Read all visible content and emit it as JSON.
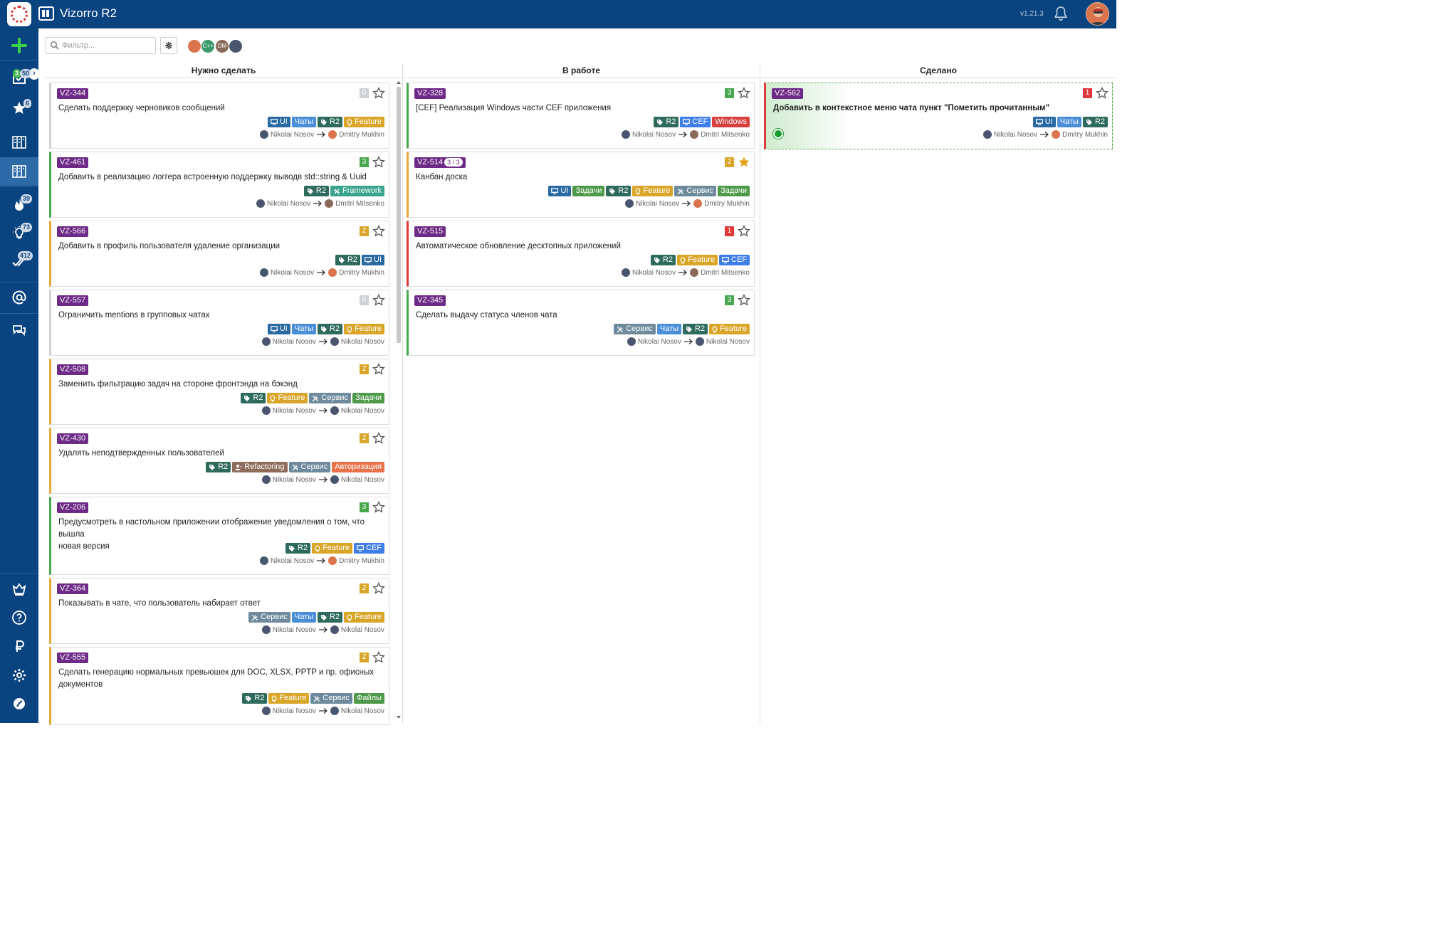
{
  "app": {
    "title": "Vizorro R2",
    "version": "v1.21.3"
  },
  "sidebar": {
    "expand_glyph": "›",
    "items": [
      {
        "name": "add",
        "icon": "plus-icon"
      },
      {
        "name": "inbox",
        "icon": "inbox-icon",
        "badge_a": "3",
        "badge_b": "50"
      },
      {
        "name": "favorites",
        "icon": "star-icon",
        "badge": "6"
      },
      {
        "name": "boards",
        "icon": "board-icon"
      },
      {
        "name": "boards-active",
        "icon": "board-icon"
      },
      {
        "name": "hot",
        "icon": "fire-icon",
        "badge": "39"
      },
      {
        "name": "ideas",
        "icon": "lightbulb-icon",
        "badge": "73"
      },
      {
        "name": "done",
        "icon": "check-icon",
        "badge": "412"
      },
      {
        "name": "mentions",
        "icon": "at-icon"
      },
      {
        "name": "chats",
        "icon": "chat-icon"
      },
      {
        "name": "premium",
        "icon": "crown-icon"
      },
      {
        "name": "help",
        "icon": "question-icon"
      },
      {
        "name": "billing",
        "icon": "ruble-icon"
      },
      {
        "name": "settings",
        "icon": "gear-icon"
      },
      {
        "name": "logo-bottom",
        "icon": "leaf-icon"
      }
    ]
  },
  "toolbar": {
    "filter_placeholder": "Фильтр...",
    "avatars": [
      {
        "label": "",
        "color": "#d9744c"
      },
      {
        "label": "C++",
        "color": "#3c9a6d"
      },
      {
        "label": "DM",
        "color": "#8a6a5a"
      },
      {
        "label": "",
        "color": "#4a5570"
      }
    ]
  },
  "columns": [
    {
      "title": "Нужно сделать"
    },
    {
      "title": "В работе"
    },
    {
      "title": "Сделано"
    }
  ],
  "cards": [
    {
      "col": 0,
      "id": "VZ-344",
      "prio": "0",
      "prio_color": "#cfd2d5",
      "starred": false,
      "title": [
        "Сделать поддержку черновиков сообщений"
      ],
      "tags": [
        {
          "t": "UI",
          "c": "#2a6aa3",
          "ic": "monitor"
        },
        {
          "t": "Чаты",
          "c": "#4a8ed8",
          "ic": ""
        },
        {
          "t": "R2",
          "c": "#2f6b5d",
          "ic": "tag"
        },
        {
          "t": "Feature",
          "c": "#d9a62a",
          "ic": "bulb"
        }
      ],
      "from": "Nikolai Nosov",
      "to": "Dmitry Mukhin"
    },
    {
      "col": 0,
      "id": "VZ-461",
      "prio": "3",
      "prio_color": "#49a84f",
      "starred": false,
      "title": [
        "Добавить в реализацию логгера встроенную поддержку выводв std::string & Uuid"
      ],
      "tags": [
        {
          "t": "R2",
          "c": "#2f6b5d",
          "ic": "tag"
        },
        {
          "t": "Framework",
          "c": "#3aa38e",
          "ic": "cross"
        }
      ],
      "from": "Nikolai Nosov",
      "to": "Dmitri Mitsenko"
    },
    {
      "col": 0,
      "id": "VZ-566",
      "prio": "2",
      "prio_color": "#d9a62a",
      "starred": false,
      "title": [
        "Добавить в профиль пользователя удаление организации"
      ],
      "tags": [
        {
          "t": "R2",
          "c": "#2f6b5d",
          "ic": "tag"
        },
        {
          "t": "UI",
          "c": "#2a6aa3",
          "ic": "monitor"
        }
      ],
      "from": "Nikolai Nosov",
      "to": "Dmitry Mukhin"
    },
    {
      "col": 0,
      "id": "VZ-557",
      "prio": "0",
      "prio_color": "#cfd2d5",
      "starred": false,
      "title": [
        "Ограничить mentions в групповых чатах"
      ],
      "tags": [
        {
          "t": "UI",
          "c": "#2a6aa3",
          "ic": "monitor"
        },
        {
          "t": "Чаты",
          "c": "#4a8ed8",
          "ic": ""
        },
        {
          "t": "R2",
          "c": "#2f6b5d",
          "ic": "tag"
        },
        {
          "t": "Feature",
          "c": "#d9a62a",
          "ic": "bulb"
        }
      ],
      "from": "Nikolai Nosov",
      "to": "Nikolai Nosov"
    },
    {
      "col": 0,
      "id": "VZ-508",
      "prio": "2",
      "prio_color": "#d9a62a",
      "starred": false,
      "title": [
        "Заменить фильтрацию задач на стороне фронтэнда на бэкэнд"
      ],
      "tags": [
        {
          "t": "R2",
          "c": "#2f6b5d",
          "ic": "tag"
        },
        {
          "t": "Feature",
          "c": "#d9a62a",
          "ic": "bulb"
        },
        {
          "t": "Сервис",
          "c": "#6e8a9c",
          "ic": "tools"
        },
        {
          "t": "Задачи",
          "c": "#4f9a4a",
          "ic": ""
        }
      ],
      "from": "Nikolai Nosov",
      "to": "Nikolai Nosov"
    },
    {
      "col": 0,
      "id": "VZ-430",
      "prio": "2",
      "prio_color": "#d9a62a",
      "starred": false,
      "title": [
        "Удалять неподтвержденных пользователей"
      ],
      "tags": [
        {
          "t": "R2",
          "c": "#2f6b5d",
          "ic": "tag"
        },
        {
          "t": "Refactoring",
          "c": "#8e6b5a",
          "ic": "user"
        },
        {
          "t": "Сервис",
          "c": "#6e8a9c",
          "ic": "tools"
        },
        {
          "t": "Авторизация",
          "c": "#e8734a",
          "ic": ""
        }
      ],
      "from": "Nikolai Nosov",
      "to": "Nikolai Nosov"
    },
    {
      "col": 0,
      "id": "VZ-206",
      "prio": "3",
      "prio_color": "#49a84f",
      "starred": false,
      "title": [
        "Предусмотреть в настольном приложении отображение уведомления о том, что вышла",
        "новая версия"
      ],
      "tags": [
        {
          "t": "R2",
          "c": "#2f6b5d",
          "ic": "tag"
        },
        {
          "t": "Feature",
          "c": "#d9a62a",
          "ic": "bulb"
        },
        {
          "t": "CEF",
          "c": "#3f7ee8",
          "ic": "monitor"
        }
      ],
      "from": "Nikolai Nosov",
      "to": "Dmitry Mukhin"
    },
    {
      "col": 0,
      "id": "VZ-364",
      "prio": "2",
      "prio_color": "#d9a62a",
      "starred": false,
      "title": [
        "Показывать в чате, что пользователь набирает ответ"
      ],
      "tags": [
        {
          "t": "Сервис",
          "c": "#6e8a9c",
          "ic": "tools"
        },
        {
          "t": "Чаты",
          "c": "#4a8ed8",
          "ic": ""
        },
        {
          "t": "R2",
          "c": "#2f6b5d",
          "ic": "tag"
        },
        {
          "t": "Feature",
          "c": "#d9a62a",
          "ic": "bulb"
        }
      ],
      "from": "Nikolai Nosov",
      "to": "Nikolai Nosov"
    },
    {
      "col": 0,
      "id": "VZ-555",
      "prio": "2",
      "prio_color": "#d9a62a",
      "starred": false,
      "title": [
        "Сделать генерацию нормальных превьюшек для DOC, XLSX, PPTP и пр. офисных",
        "документов"
      ],
      "tags": [
        {
          "t": "R2",
          "c": "#2f6b5d",
          "ic": "tag"
        },
        {
          "t": "Feature",
          "c": "#d9a62a",
          "ic": "bulb"
        },
        {
          "t": "Сервис",
          "c": "#6e8a9c",
          "ic": "tools"
        },
        {
          "t": "Файлы",
          "c": "#4f9a4a",
          "ic": ""
        }
      ],
      "from": "Nikolai Nosov",
      "to": "Nikolai Nosov"
    },
    {
      "col": 1,
      "id": "VZ-328",
      "prio": "3",
      "prio_color": "#49a84f",
      "starred": false,
      "title": [
        "[CEF] Реализация Windows части CEF приложения"
      ],
      "tags": [
        {
          "t": "R2",
          "c": "#2f6b5d",
          "ic": "tag"
        },
        {
          "t": "CEF",
          "c": "#3f7ee8",
          "ic": "monitor"
        },
        {
          "t": "Windows",
          "c": "#d8403f",
          "ic": ""
        }
      ],
      "from": "Nikolai Nosov",
      "to": "Dmitri Mitsenko"
    },
    {
      "col": 1,
      "id": "VZ-514",
      "sub": "3 / 3",
      "prio": "2",
      "prio_color": "#d9a62a",
      "starred": true,
      "title": [
        "Канбан доска"
      ],
      "tags": [
        {
          "t": "UI",
          "c": "#2a6aa3",
          "ic": "monitor"
        },
        {
          "t": "Задачи",
          "c": "#4f9a4a",
          "ic": ""
        },
        {
          "t": "R2",
          "c": "#2f6b5d",
          "ic": "tag"
        },
        {
          "t": "Feature",
          "c": "#d9a62a",
          "ic": "bulb"
        },
        {
          "t": "Сервис",
          "c": "#6e8a9c",
          "ic": "tools"
        },
        {
          "t": "Задачи",
          "c": "#4f9a4a",
          "ic": ""
        }
      ],
      "from": "Nikolai Nosov",
      "to": "Dmitry Mukhin"
    },
    {
      "col": 1,
      "id": "VZ-515",
      "prio": "1",
      "prio_color": "#e0393b",
      "starred": false,
      "title": [
        "Автоматическое обновление десктопных приложений"
      ],
      "tags": [
        {
          "t": "R2",
          "c": "#2f6b5d",
          "ic": "tag"
        },
        {
          "t": "Feature",
          "c": "#d9a62a",
          "ic": "bulb"
        },
        {
          "t": "CEF",
          "c": "#3f7ee8",
          "ic": "monitor"
        }
      ],
      "from": "Nikolai Nosov",
      "to": "Dmitri Mitsenko"
    },
    {
      "col": 1,
      "id": "VZ-345",
      "prio": "3",
      "prio_color": "#49a84f",
      "starred": false,
      "title": [
        "Сделать выдачу статуса членов чата"
      ],
      "tags": [
        {
          "t": "Сервис",
          "c": "#6e8a9c",
          "ic": "tools"
        },
        {
          "t": "Чаты",
          "c": "#4a8ed8",
          "ic": ""
        },
        {
          "t": "R2",
          "c": "#2f6b5d",
          "ic": "tag"
        },
        {
          "t": "Feature",
          "c": "#d9a62a",
          "ic": "bulb"
        }
      ],
      "from": "Nikolai Nosov",
      "to": "Nikolai Nosov"
    },
    {
      "col": 2,
      "id": "VZ-562",
      "prio": "1",
      "prio_color": "#e0393b",
      "starred": false,
      "bold": true,
      "done": true,
      "title": [
        "Добавить в контекстное меню чата пункт \"Пометить прочитанным\""
      ],
      "tags": [
        {
          "t": "UI",
          "c": "#2a6aa3",
          "ic": "monitor"
        },
        {
          "t": "Чаты",
          "c": "#4a8ed8",
          "ic": ""
        },
        {
          "t": "R2",
          "c": "#2f6b5d",
          "ic": "tag"
        }
      ],
      "from": "Nikolai Nosov",
      "to": "Dmitry Mukhin"
    }
  ]
}
